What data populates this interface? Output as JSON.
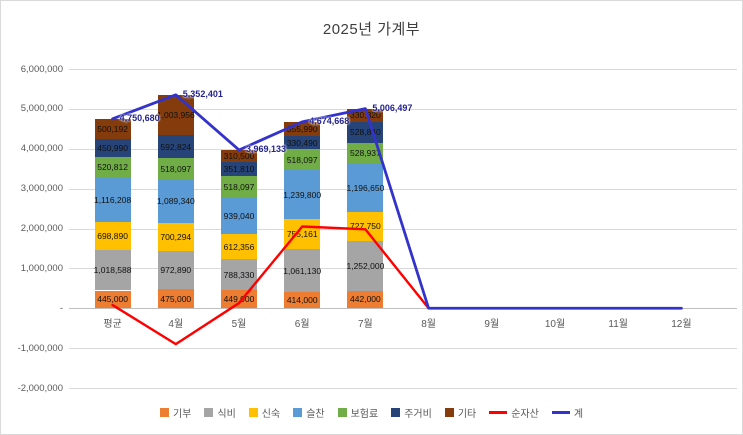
{
  "chart_data": {
    "type": "bar",
    "subtype": "stacked-column-with-lines",
    "title": "2025년 가계부",
    "categories": [
      "평균",
      "4월",
      "5월",
      "6월",
      "7월",
      "8월",
      "9월",
      "10월",
      "11월",
      "12월"
    ],
    "y_tick_labels": [
      "6,000,000",
      "5,000,000",
      "4,000,000",
      "3,000,000",
      "2,000,000",
      "1,000,000",
      "-",
      "-1,000,000",
      "-2,000,000"
    ],
    "ylim": [
      -2000000,
      6000000
    ],
    "grid": true,
    "legend_position": "bottom",
    "bar_series": [
      {
        "name": "기부",
        "color": "#ED7D31",
        "values": [
          445000,
          475000,
          449000,
          414000,
          442000,
          0,
          0,
          0,
          0,
          0
        ]
      },
      {
        "name": "식비",
        "color": "#A5A5A5",
        "values": [
          1018588,
          972890,
          788330,
          1061130,
          1252000,
          0,
          0,
          0,
          0,
          0
        ]
      },
      {
        "name": "신숙",
        "color": "#FFC000",
        "values": [
          698890,
          700294,
          612356,
          755161,
          727750,
          0,
          0,
          0,
          0,
          0
        ]
      },
      {
        "name": "슬찬",
        "color": "#5B9BD5",
        "values": [
          1116208,
          1089340,
          939040,
          1239800,
          1196650,
          0,
          0,
          0,
          0,
          0
        ]
      },
      {
        "name": "보험료",
        "color": "#70AD47",
        "values": [
          520812,
          518097,
          518097,
          518097,
          528937,
          0,
          0,
          0,
          0,
          0
        ]
      },
      {
        "name": "주거비",
        "color": "#264478",
        "values": [
          450990,
          592824,
          351810,
          330490,
          528840,
          0,
          0,
          0,
          0,
          0
        ]
      },
      {
        "name": "기타",
        "color": "#843C0C",
        "values": [
          500192,
          1003956,
          310500,
          355990,
          330320,
          0,
          0,
          0,
          0,
          0
        ]
      }
    ],
    "line_series": [
      {
        "name": "순자산",
        "color": "#FF0000",
        "show_point_labels": false,
        "values": [
          80000,
          -900000,
          130000,
          2050000,
          1980000,
          0,
          0,
          0,
          0,
          0
        ]
      },
      {
        "name": "계",
        "color": "#3333CC",
        "show_point_labels": true,
        "values": [
          4750680,
          5352401,
          3969133,
          4674668,
          5006497,
          0,
          0,
          0,
          0,
          0
        ]
      }
    ],
    "bar_totals": [
      4750680,
      5352401,
      3969133,
      4674668,
      5006497,
      0,
      0,
      0,
      0,
      0
    ]
  }
}
